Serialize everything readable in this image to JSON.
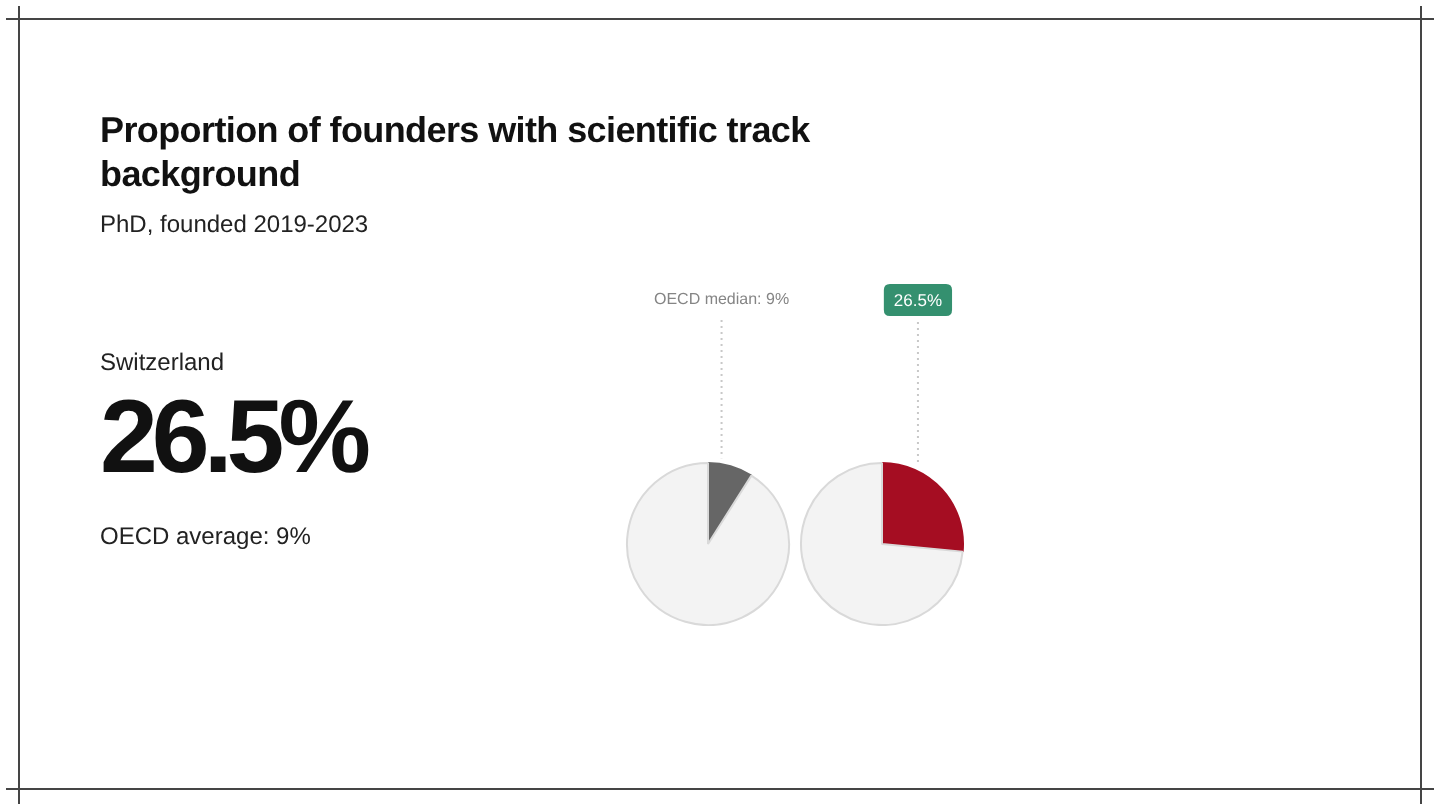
{
  "chart_data": [
    {
      "type": "other",
      "title": "Proportion of founders with scientific track background",
      "subtitle": "PhD, founded 2019-2023",
      "annotations": [
        "Switzerland",
        "26.5%",
        "OECD average: 9%"
      ]
    },
    {
      "type": "pie",
      "categories": [
        null,
        null
      ],
      "values": [
        9,
        91
      ],
      "colors": [
        "#666666",
        "#f3f3f3"
      ],
      "annotations": [
        "OECD median: 9%"
      ]
    },
    {
      "type": "pie",
      "categories": [
        null,
        null
      ],
      "values": [
        26.5,
        73.5
      ],
      "colors": [
        "#a50d22",
        "#f3f3f3"
      ],
      "value_labels": [
        "26.5%",
        null
      ]
    }
  ]
}
